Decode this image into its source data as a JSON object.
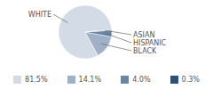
{
  "chart_data": {
    "type": "pie",
    "categories": [
      "WHITE",
      "BLACK",
      "HISPANIC",
      "ASIAN"
    ],
    "values": [
      81.5,
      14.1,
      4.0,
      0.3
    ],
    "value_labels": [
      "81.5%",
      "14.1%",
      "4.0%",
      "0.3%"
    ],
    "colors": [
      "#d3dbe6",
      "#9fb1c6",
      "#6a86a6",
      "#2d4f78"
    ],
    "legend": "bottom"
  }
}
